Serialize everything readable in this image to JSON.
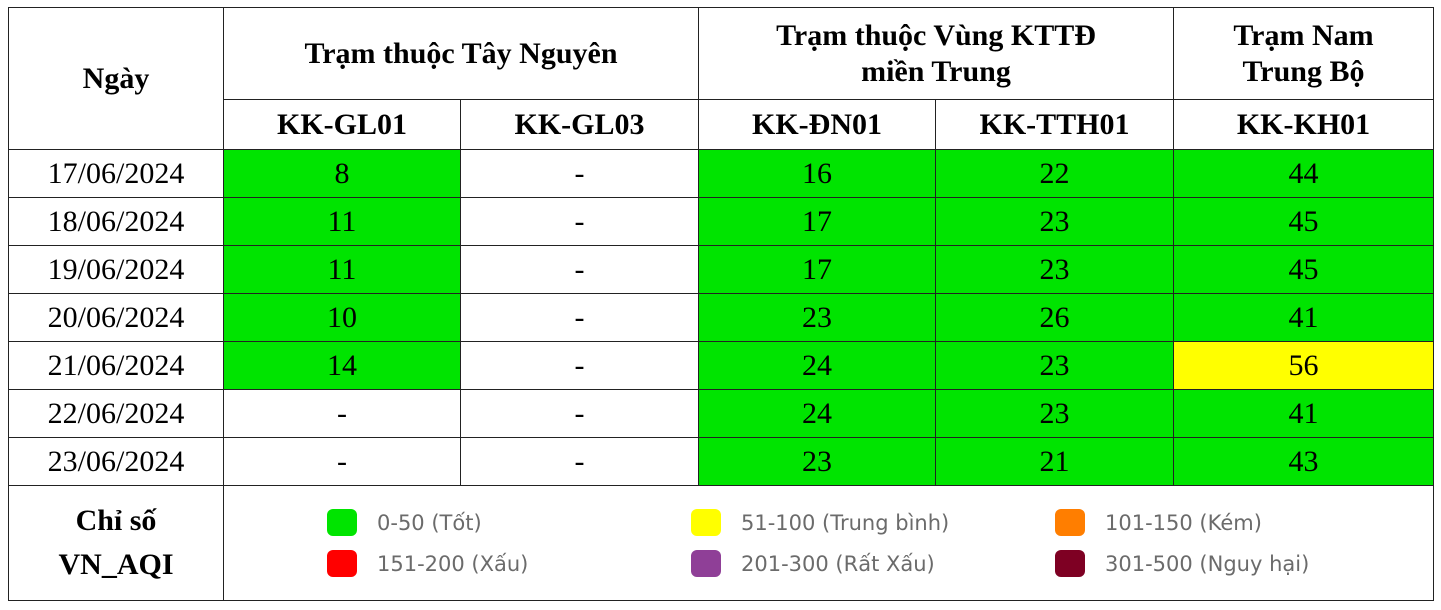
{
  "header": {
    "date_col": "Ngày",
    "groups": [
      {
        "label": "Trạm thuộc Tây Nguyên"
      },
      {
        "label_line1": "Trạm thuộc Vùng KTTĐ",
        "label_line2": "miền Trung"
      },
      {
        "label_line1": "Trạm Nam",
        "label_line2": "Trung Bộ"
      }
    ],
    "stations": [
      "KK-GL01",
      "KK-GL03",
      "KK-ĐN01",
      "KK-TTH01",
      "KK-KH01"
    ]
  },
  "rows": [
    {
      "date": "17/06/2024",
      "values": [
        "8",
        "-",
        "16",
        "22",
        "44"
      ]
    },
    {
      "date": "18/06/2024",
      "values": [
        "11",
        "-",
        "17",
        "23",
        "45"
      ]
    },
    {
      "date": "19/06/2024",
      "values": [
        "11",
        "-",
        "17",
        "23",
        "45"
      ]
    },
    {
      "date": "20/06/2024",
      "values": [
        "10",
        "-",
        "23",
        "26",
        "41"
      ]
    },
    {
      "date": "21/06/2024",
      "values": [
        "14",
        "-",
        "24",
        "23",
        "56"
      ]
    },
    {
      "date": "22/06/2024",
      "values": [
        "-",
        "-",
        "24",
        "23",
        "41"
      ]
    },
    {
      "date": "23/06/2024",
      "values": [
        "-",
        "-",
        "23",
        "21",
        "43"
      ]
    }
  ],
  "legend": {
    "title_line1": "Chỉ số",
    "title_line2": "VN_AQI",
    "items": [
      {
        "label": "0-50 (Tốt)",
        "color": "#00e400"
      },
      {
        "label": "51-100 (Trung bình)",
        "color": "#ffff00"
      },
      {
        "label": "101-150 (Kém)",
        "color": "#ff7e00"
      },
      {
        "label": "151-200 (Xấu)",
        "color": "#ff0000"
      },
      {
        "label": "201-300 (Rất Xấu)",
        "color": "#8f3f97"
      },
      {
        "label": "301-500 (Nguy hại)",
        "color": "#7e0023"
      }
    ]
  }
}
